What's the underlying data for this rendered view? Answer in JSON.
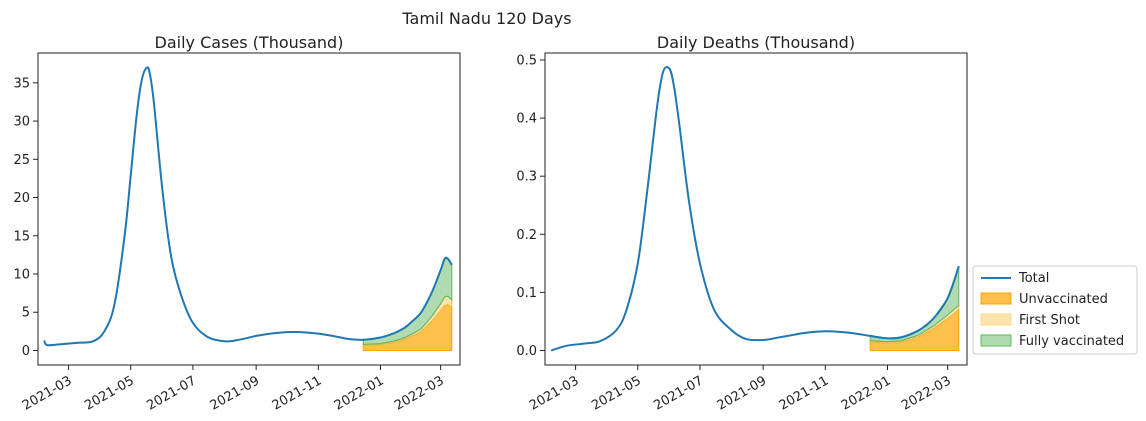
{
  "figure_title": "Tamil Nadu 120 Days",
  "legend": {
    "placement": "right",
    "entries": [
      {
        "label": "Total",
        "kind": "line",
        "color": "#1f77b4"
      },
      {
        "label": "Unvaccinated",
        "kind": "area",
        "color": "#ffa500"
      },
      {
        "label": "First Shot",
        "kind": "area",
        "color": "#ffcc66"
      },
      {
        "label": "Fully vaccinated",
        "kind": "area",
        "color": "#5cb85c"
      }
    ]
  },
  "colors": {
    "total": "#1f77b4",
    "unvaccinated": "#ffa500",
    "first_shot": "#fcd98a",
    "fully_vaccinated": "#8fcc8f"
  },
  "chart_data": [
    {
      "type": "line",
      "title": "Daily Cases (Thousand)",
      "xlabel": "",
      "ylabel": "",
      "x_type": "date",
      "xlim": [
        "2021-01-30",
        "2022-03-20"
      ],
      "ylim": [
        -1.9,
        38.9
      ],
      "x_ticks": [
        "2021-03-01",
        "2021-05-01",
        "2021-07-01",
        "2021-09-01",
        "2021-11-01",
        "2022-01-01",
        "2022-03-01"
      ],
      "x_tick_labels": [
        "2021-03",
        "2021-05",
        "2021-07",
        "2021-09",
        "2021-11",
        "2022-01",
        "2022-03"
      ],
      "y_ticks": [
        0,
        5,
        10,
        15,
        20,
        25,
        30,
        35
      ],
      "grid": false,
      "total": {
        "name": "Total",
        "x": [
          "2021-02-05",
          "2021-02-08",
          "2021-02-20",
          "2021-03-10",
          "2021-03-25",
          "2021-04-05",
          "2021-04-15",
          "2021-04-25",
          "2021-05-01",
          "2021-05-07",
          "2021-05-12",
          "2021-05-17",
          "2021-05-20",
          "2021-05-24",
          "2021-06-01",
          "2021-06-10",
          "2021-06-20",
          "2021-07-01",
          "2021-07-15",
          "2021-08-01",
          "2021-08-15",
          "2021-09-01",
          "2021-09-15",
          "2021-10-01",
          "2021-10-15",
          "2021-11-01",
          "2021-11-15",
          "2021-12-01",
          "2021-12-15",
          "2022-01-01",
          "2022-01-15",
          "2022-01-25",
          "2022-02-01",
          "2022-02-10",
          "2022-02-20",
          "2022-03-01",
          "2022-03-05",
          "2022-03-08",
          "2022-03-12"
        ],
        "y": [
          1.3,
          0.7,
          0.8,
          1.0,
          1.2,
          2.5,
          6.0,
          15.0,
          23.0,
          31.0,
          35.5,
          37.0,
          36.0,
          32.0,
          21.0,
          12.0,
          7.0,
          3.6,
          1.8,
          1.2,
          1.4,
          1.9,
          2.2,
          2.4,
          2.4,
          2.2,
          1.9,
          1.5,
          1.4,
          1.7,
          2.3,
          3.0,
          3.8,
          5.0,
          7.5,
          10.5,
          12.0,
          12.0,
          11.2
        ]
      },
      "vaccination_areas": {
        "x": [
          "2021-12-15",
          "2022-01-01",
          "2022-01-15",
          "2022-01-25",
          "2022-02-01",
          "2022-02-10",
          "2022-02-20",
          "2022-03-01",
          "2022-03-05",
          "2022-03-08",
          "2022-03-12"
        ],
        "unvaccinated": [
          0.7,
          0.8,
          1.1,
          1.5,
          1.9,
          2.5,
          3.8,
          5.2,
          5.9,
          6.0,
          5.6
        ],
        "first_shot": [
          0.1,
          0.1,
          0.15,
          0.2,
          0.25,
          0.35,
          0.6,
          0.9,
          1.1,
          1.1,
          1.0
        ],
        "fully_vaccinated": [
          0.5,
          0.8,
          1.05,
          1.3,
          1.65,
          2.15,
          3.1,
          4.4,
          5.0,
          4.9,
          4.6
        ]
      }
    },
    {
      "type": "line",
      "title": "Daily Deaths (Thousand)",
      "xlabel": "",
      "ylabel": "",
      "x_type": "date",
      "xlim": [
        "2021-01-30",
        "2022-03-20"
      ],
      "ylim": [
        -0.025,
        0.512
      ],
      "x_ticks": [
        "2021-03-01",
        "2021-05-01",
        "2021-07-01",
        "2021-09-01",
        "2021-11-01",
        "2022-01-01",
        "2022-03-01"
      ],
      "x_tick_labels": [
        "2021-03",
        "2021-05",
        "2021-07",
        "2021-09",
        "2021-11",
        "2022-01",
        "2022-03"
      ],
      "y_ticks": [
        0.0,
        0.1,
        0.2,
        0.3,
        0.4,
        0.5
      ],
      "y_tick_labels": [
        "0.0",
        "0.1",
        "0.2",
        "0.3",
        "0.4",
        "0.5"
      ],
      "grid": false,
      "total": {
        "name": "Total",
        "x": [
          "2021-02-05",
          "2021-02-20",
          "2021-03-10",
          "2021-03-25",
          "2021-04-10",
          "2021-04-20",
          "2021-05-01",
          "2021-05-10",
          "2021-05-20",
          "2021-05-26",
          "2021-06-01",
          "2021-06-05",
          "2021-06-10",
          "2021-06-20",
          "2021-07-01",
          "2021-07-15",
          "2021-08-01",
          "2021-08-15",
          "2021-09-01",
          "2021-09-15",
          "2021-10-01",
          "2021-10-15",
          "2021-11-01",
          "2021-11-15",
          "2021-12-01",
          "2021-12-15",
          "2022-01-01",
          "2022-01-15",
          "2022-02-01",
          "2022-02-15",
          "2022-03-01",
          "2022-03-12"
        ],
        "y": [
          0.0,
          0.008,
          0.012,
          0.016,
          0.035,
          0.07,
          0.15,
          0.27,
          0.42,
          0.48,
          0.485,
          0.46,
          0.4,
          0.26,
          0.15,
          0.07,
          0.035,
          0.02,
          0.018,
          0.022,
          0.027,
          0.031,
          0.033,
          0.032,
          0.029,
          0.025,
          0.021,
          0.023,
          0.035,
          0.055,
          0.09,
          0.145
        ]
      },
      "vaccination_areas": {
        "x": [
          "2021-12-15",
          "2022-01-01",
          "2022-01-15",
          "2022-02-01",
          "2022-02-15",
          "2022-03-01",
          "2022-03-12"
        ],
        "unvaccinated": [
          0.015,
          0.013,
          0.015,
          0.024,
          0.038,
          0.055,
          0.07
        ],
        "first_shot": [
          0.002,
          0.002,
          0.002,
          0.003,
          0.004,
          0.006,
          0.008
        ],
        "fully_vaccinated": [
          0.008,
          0.006,
          0.006,
          0.008,
          0.013,
          0.029,
          0.067
        ]
      }
    }
  ]
}
